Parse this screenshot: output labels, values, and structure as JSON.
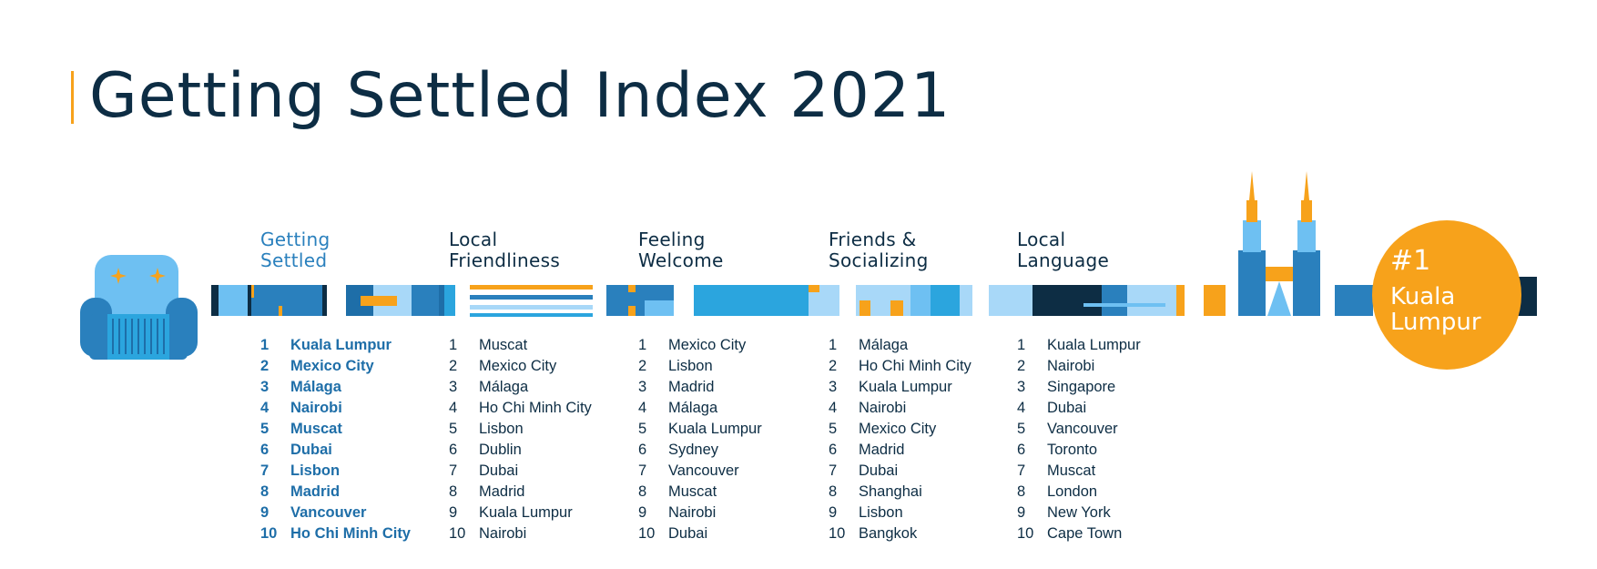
{
  "title": "Getting Settled Index 2021",
  "accent_colors": {
    "navy": "#0d2d44",
    "dark_blue": "#1e6ea8",
    "mid_blue": "#2a80bd",
    "bright_blue": "#2ba5de",
    "light_blue": "#a8d8f8",
    "sky_blue": "#6ec0f2",
    "orange": "#f7a21b"
  },
  "icons": [
    "armchair-icon",
    "skyline-illustration",
    "petronas-towers-icon"
  ],
  "badge": {
    "rank": "#1",
    "city": "Kuala Lumpur"
  },
  "columns": [
    {
      "heading": "Getting\nSettled",
      "primary": true,
      "items": [
        {
          "rank": "1",
          "city": "Kuala Lumpur"
        },
        {
          "rank": "2",
          "city": "Mexico City"
        },
        {
          "rank": "3",
          "city": "Málaga"
        },
        {
          "rank": "4",
          "city": "Nairobi"
        },
        {
          "rank": "5",
          "city": "Muscat"
        },
        {
          "rank": "6",
          "city": "Dubai"
        },
        {
          "rank": "7",
          "city": "Lisbon"
        },
        {
          "rank": "8",
          "city": "Madrid"
        },
        {
          "rank": "9",
          "city": "Vancouver"
        },
        {
          "rank": "10",
          "city": "Ho Chi Minh City"
        }
      ]
    },
    {
      "heading": "Local\nFriendliness",
      "primary": false,
      "items": [
        {
          "rank": "1",
          "city": "Muscat"
        },
        {
          "rank": "2",
          "city": "Mexico City"
        },
        {
          "rank": "3",
          "city": "Málaga"
        },
        {
          "rank": "4",
          "city": "Ho Chi Minh City"
        },
        {
          "rank": "5",
          "city": "Lisbon"
        },
        {
          "rank": "6",
          "city": "Dublin"
        },
        {
          "rank": "7",
          "city": "Dubai"
        },
        {
          "rank": "8",
          "city": "Madrid"
        },
        {
          "rank": "9",
          "city": "Kuala Lumpur"
        },
        {
          "rank": "10",
          "city": "Nairobi"
        }
      ]
    },
    {
      "heading": "Feeling\nWelcome",
      "primary": false,
      "items": [
        {
          "rank": "1",
          "city": "Mexico City"
        },
        {
          "rank": "2",
          "city": "Lisbon"
        },
        {
          "rank": "3",
          "city": "Madrid"
        },
        {
          "rank": "4",
          "city": "Málaga"
        },
        {
          "rank": "5",
          "city": "Kuala Lumpur"
        },
        {
          "rank": "6",
          "city": "Sydney"
        },
        {
          "rank": "7",
          "city": "Vancouver"
        },
        {
          "rank": "8",
          "city": "Muscat"
        },
        {
          "rank": "9",
          "city": "Nairobi"
        },
        {
          "rank": "10",
          "city": "Dubai"
        }
      ]
    },
    {
      "heading": "Friends &\nSocializing",
      "primary": false,
      "items": [
        {
          "rank": "1",
          "city": "Málaga"
        },
        {
          "rank": "2",
          "city": "Ho Chi Minh City"
        },
        {
          "rank": "3",
          "city": "Kuala Lumpur"
        },
        {
          "rank": "4",
          "city": "Nairobi"
        },
        {
          "rank": "5",
          "city": "Mexico City"
        },
        {
          "rank": "6",
          "city": "Madrid"
        },
        {
          "rank": "7",
          "city": "Dubai"
        },
        {
          "rank": "8",
          "city": "Shanghai"
        },
        {
          "rank": "9",
          "city": "Lisbon"
        },
        {
          "rank": "10",
          "city": "Bangkok"
        }
      ]
    },
    {
      "heading": "Local\nLanguage",
      "primary": false,
      "items": [
        {
          "rank": "1",
          "city": "Kuala Lumpur"
        },
        {
          "rank": "2",
          "city": "Nairobi"
        },
        {
          "rank": "3",
          "city": "Singapore"
        },
        {
          "rank": "4",
          "city": "Dubai"
        },
        {
          "rank": "5",
          "city": "Vancouver"
        },
        {
          "rank": "6",
          "city": "Toronto"
        },
        {
          "rank": "7",
          "city": "Muscat"
        },
        {
          "rank": "8",
          "city": "London"
        },
        {
          "rank": "9",
          "city": "New York"
        },
        {
          "rank": "10",
          "city": "Cape Town"
        }
      ]
    }
  ]
}
